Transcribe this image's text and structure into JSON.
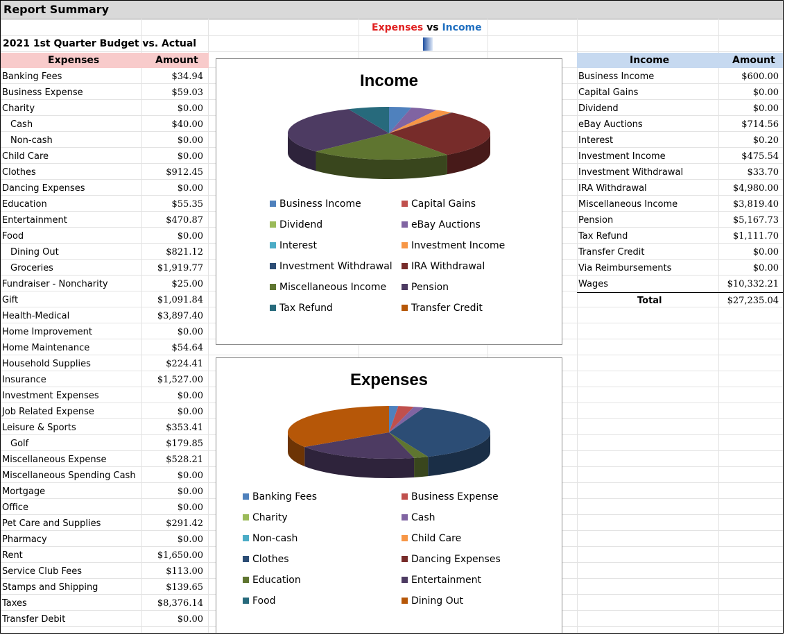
{
  "sheet_title": "Report Summary",
  "subtitle": "2021 1st Quarter Budget vs. Actual",
  "banner": {
    "expenses": "Expenses",
    "vs": "vs",
    "income": "Income"
  },
  "expenses": {
    "header_label": "Expenses",
    "header_amount": "Amount",
    "rows": [
      {
        "label": "Banking Fees",
        "amount": "$34.94",
        "indent": false
      },
      {
        "label": "Business Expense",
        "amount": "$59.03",
        "indent": false
      },
      {
        "label": "Charity",
        "amount": "$0.00",
        "indent": false
      },
      {
        "label": "Cash",
        "amount": "$40.00",
        "indent": true
      },
      {
        "label": "Non-cash",
        "amount": "$0.00",
        "indent": true
      },
      {
        "label": "Child Care",
        "amount": "$0.00",
        "indent": false
      },
      {
        "label": "Clothes",
        "amount": "$912.45",
        "indent": false
      },
      {
        "label": "Dancing Expenses",
        "amount": "$0.00",
        "indent": false
      },
      {
        "label": "Education",
        "amount": "$55.35",
        "indent": false
      },
      {
        "label": "Entertainment",
        "amount": "$470.87",
        "indent": false
      },
      {
        "label": "Food",
        "amount": "$0.00",
        "indent": false
      },
      {
        "label": "Dining Out",
        "amount": "$821.12",
        "indent": true
      },
      {
        "label": "Groceries",
        "amount": "$1,919.77",
        "indent": true
      },
      {
        "label": "Fundraiser - Noncharity",
        "amount": "$25.00",
        "indent": false
      },
      {
        "label": "Gift",
        "amount": "$1,091.84",
        "indent": false
      },
      {
        "label": "Health-Medical",
        "amount": "$3,897.40",
        "indent": false
      },
      {
        "label": "Home Improvement",
        "amount": "$0.00",
        "indent": false
      },
      {
        "label": "Home Maintenance",
        "amount": "$54.64",
        "indent": false
      },
      {
        "label": "Household Supplies",
        "amount": "$224.41",
        "indent": false
      },
      {
        "label": "Insurance",
        "amount": "$1,527.00",
        "indent": false
      },
      {
        "label": "Investment Expenses",
        "amount": "$0.00",
        "indent": false
      },
      {
        "label": "Job Related Expense",
        "amount": "$0.00",
        "indent": false
      },
      {
        "label": "Leisure & Sports",
        "amount": "$353.41",
        "indent": false
      },
      {
        "label": "Golf",
        "amount": "$179.85",
        "indent": true
      },
      {
        "label": "Miscellaneous Expense",
        "amount": "$528.21",
        "indent": false
      },
      {
        "label": "Miscellaneous Spending Cash",
        "amount": "$0.00",
        "indent": false
      },
      {
        "label": "Mortgage",
        "amount": "$0.00",
        "indent": false
      },
      {
        "label": "Office",
        "amount": "$0.00",
        "indent": false
      },
      {
        "label": "Pet Care and Supplies",
        "amount": "$291.42",
        "indent": false
      },
      {
        "label": "Pharmacy",
        "amount": "$0.00",
        "indent": false
      },
      {
        "label": "Rent",
        "amount": "$1,650.00",
        "indent": false
      },
      {
        "label": "Service Club Fees",
        "amount": "$113.00",
        "indent": false
      },
      {
        "label": "Stamps and Shipping",
        "amount": "$139.65",
        "indent": false
      },
      {
        "label": "Taxes",
        "amount": "$8,376.14",
        "indent": false
      },
      {
        "label": "Transfer Debit",
        "amount": "$0.00",
        "indent": false
      }
    ]
  },
  "income": {
    "header_label": "Income",
    "header_amount": "Amount",
    "rows": [
      {
        "label": "Business Income",
        "amount": "$600.00"
      },
      {
        "label": "Capital Gains",
        "amount": "$0.00"
      },
      {
        "label": "Dividend",
        "amount": "$0.00"
      },
      {
        "label": "eBay Auctions",
        "amount": "$714.56"
      },
      {
        "label": "Interest",
        "amount": "$0.20"
      },
      {
        "label": "Investment Income",
        "amount": "$475.54"
      },
      {
        "label": "Investment Withdrawal",
        "amount": "$33.70"
      },
      {
        "label": "IRA Withdrawal",
        "amount": "$4,980.00"
      },
      {
        "label": "Miscellaneous Income",
        "amount": "$3,819.40"
      },
      {
        "label": "Pension",
        "amount": "$5,167.73"
      },
      {
        "label": "Tax Refund",
        "amount": "$1,111.70"
      },
      {
        "label": "Transfer Credit",
        "amount": "$0.00"
      },
      {
        "label": "Via Reimbursements",
        "amount": "$0.00"
      },
      {
        "label": "Wages",
        "amount": "$10,332.21"
      }
    ],
    "total_label": "Total",
    "total_amount": "$27,235.04"
  },
  "palette": [
    "#4f81bd",
    "#c0504d",
    "#9bbb59",
    "#8064a2",
    "#4bacc6",
    "#f79646",
    "#2c4d75",
    "#772c2a",
    "#5f7530",
    "#4d3b62",
    "#276a7c",
    "#b65708",
    "#729aca",
    "#d3a09f",
    "#b9cd96",
    "#a899bd"
  ],
  "chart_data": [
    {
      "type": "pie",
      "title": "Income",
      "categories": [
        "Business Income",
        "Capital Gains",
        "Dividend",
        "eBay Auctions",
        "Interest",
        "Investment Income",
        "Investment Withdrawal",
        "IRA Withdrawal",
        "Miscellaneous Income",
        "Pension",
        "Tax Refund",
        "Transfer Credit"
      ],
      "values": [
        600.0,
        0.0,
        0.0,
        714.56,
        0.2,
        475.54,
        33.7,
        4980.0,
        3819.4,
        5167.73,
        1111.7,
        0.0
      ],
      "legend_position": "bottom"
    },
    {
      "type": "pie",
      "title": "Expenses",
      "categories": [
        "Banking Fees",
        "Business Expense",
        "Charity",
        "Cash",
        "Non-cash",
        "Child Care",
        "Clothes",
        "Dancing Expenses",
        "Education",
        "Entertainment",
        "Food",
        "Dining Out"
      ],
      "values": [
        34.94,
        59.03,
        0.0,
        40.0,
        0.0,
        0.0,
        912.45,
        0.0,
        55.35,
        470.87,
        0.0,
        821.12
      ],
      "legend_position": "bottom"
    }
  ]
}
